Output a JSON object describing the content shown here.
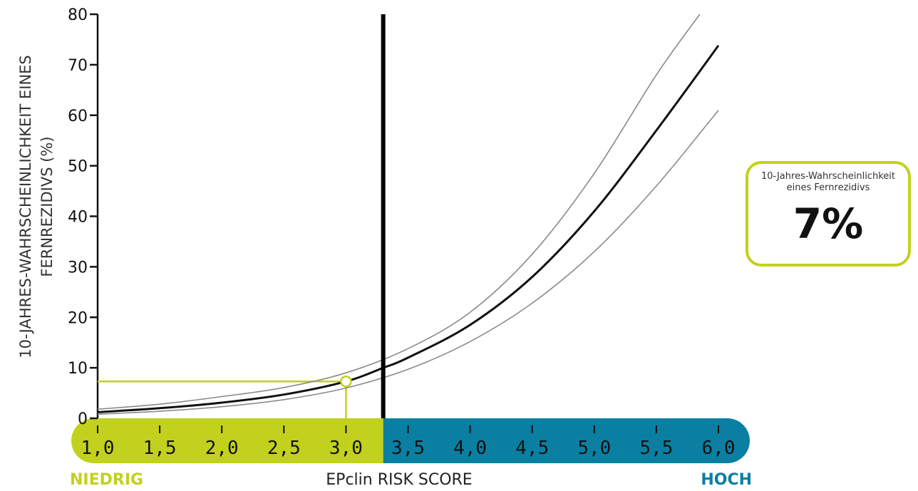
{
  "colors": {
    "low": "#c2d11e",
    "high": "#0b7fa2",
    "curve": "#111111",
    "ci": "#8a8a8a",
    "threshold": "#000000"
  },
  "y_axis_label": "10-JAHRES-WAHRSCHEINLICHKEIT EINES FERNREZIDIVS (%)",
  "x_axis_title": "EPclin RISK SCORE",
  "low_label": "NIEDRIG",
  "high_label": "HOCH",
  "result": {
    "caption": "10-Jahres-Wahrscheinlichkeit eines Fernrezidivs",
    "value": "7%"
  },
  "chart_data": {
    "type": "line",
    "title": "",
    "xlabel": "EPclin RISK SCORE",
    "ylabel": "10-JAHRES-WAHRSCHEINLICHKEIT EINES FERNREZIDIVS (%)",
    "xlim": [
      1.0,
      6.0
    ],
    "ylim": [
      0,
      80
    ],
    "yticks": [
      0,
      10,
      20,
      30,
      40,
      50,
      60,
      70,
      80
    ],
    "xticks": [
      1.0,
      1.5,
      2.0,
      2.5,
      3.0,
      3.5,
      4.0,
      4.5,
      5.0,
      5.5,
      6.0
    ],
    "xtick_labels": [
      "1,0",
      "1,5",
      "2,0",
      "2,5",
      "3,0",
      "3,5",
      "4,0",
      "4,5",
      "5,0",
      "5,5",
      "6,0"
    ],
    "threshold": 3.3,
    "grid": false,
    "legend": "none",
    "series": [
      {
        "role": "estimate",
        "x": [
          1.0,
          1.5,
          2.0,
          2.5,
          3.0,
          3.3,
          3.5,
          4.0,
          4.5,
          5.0,
          5.5,
          6.0
        ],
        "y": [
          1.2,
          2.0,
          3.1,
          4.7,
          7.3,
          10.0,
          12.0,
          18.5,
          28.0,
          41.0,
          57.0,
          73.8
        ]
      },
      {
        "role": "upper",
        "x": [
          1.0,
          1.5,
          2.0,
          2.5,
          3.0,
          3.5,
          4.0,
          4.5,
          5.0,
          5.5,
          5.85
        ],
        "y": [
          1.8,
          2.8,
          4.3,
          6.1,
          9.0,
          13.8,
          21.0,
          32.5,
          48.5,
          68.0,
          80.0
        ]
      },
      {
        "role": "lower",
        "x": [
          1.0,
          1.5,
          2.0,
          2.5,
          3.0,
          3.5,
          4.0,
          4.5,
          5.0,
          5.5,
          6.0
        ],
        "y": [
          0.8,
          1.4,
          2.3,
          3.7,
          6.0,
          9.7,
          15.2,
          22.8,
          33.0,
          46.0,
          61.0
        ]
      }
    ],
    "marker": {
      "x": 3.0,
      "y": 7.3
    }
  }
}
